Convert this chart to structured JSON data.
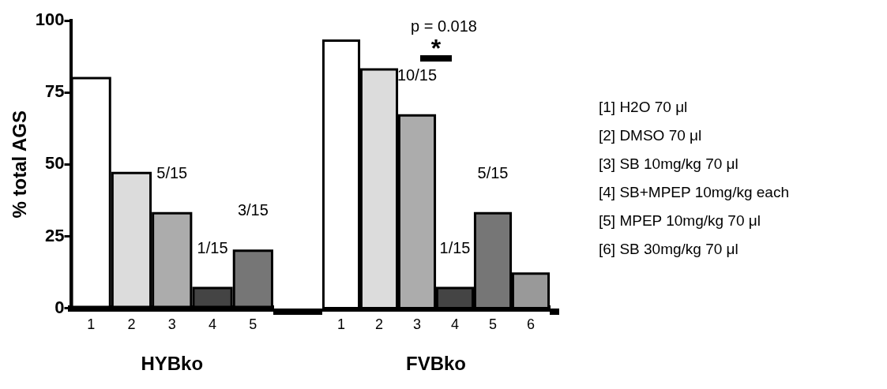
{
  "chart_data": [
    {
      "type": "bar",
      "ylabel": "% total AGS",
      "xlabel": "HYBko",
      "categories": [
        "1",
        "2",
        "3",
        "4",
        "5"
      ],
      "values": [
        80,
        47,
        33,
        7,
        20
      ],
      "colors": [
        "#ffffff",
        "#dcdcdc",
        "#acacac",
        "#444444",
        "#767676"
      ],
      "value_labels": [
        null,
        null,
        "5/15",
        "1/15",
        "3/15"
      ],
      "ylim": [
        0,
        100
      ],
      "yticks": [
        0,
        25,
        50,
        75,
        100
      ],
      "legend": false
    },
    {
      "type": "bar",
      "xlabel": "FVBko",
      "categories": [
        "1",
        "2",
        "3",
        "4",
        "5",
        "6"
      ],
      "values": [
        93,
        83,
        67,
        7,
        33,
        12
      ],
      "colors": [
        "#ffffff",
        "#dcdcdc",
        "#acacac",
        "#444444",
        "#767676",
        "#999999"
      ],
      "value_labels": [
        null,
        null,
        "10/15",
        "1/15",
        "5/15",
        null
      ],
      "ylim": [
        0,
        100
      ],
      "yticks": [
        0,
        25,
        50,
        75,
        100
      ],
      "tick_labels": "x",
      "legend": false,
      "annotations": [
        "p = 0.018",
        "*",
        "[1] H2O  70 μl",
        "[2] DMSO  70 μl",
        "[3] SB 10mg/kg  70 μl",
        "[4] SB+MPEP 10mg/kg each",
        "[5] MPEP 10mg/kg  70 μl",
        "[6] SB 30mg/kg  70 μl"
      ]
    }
  ]
}
